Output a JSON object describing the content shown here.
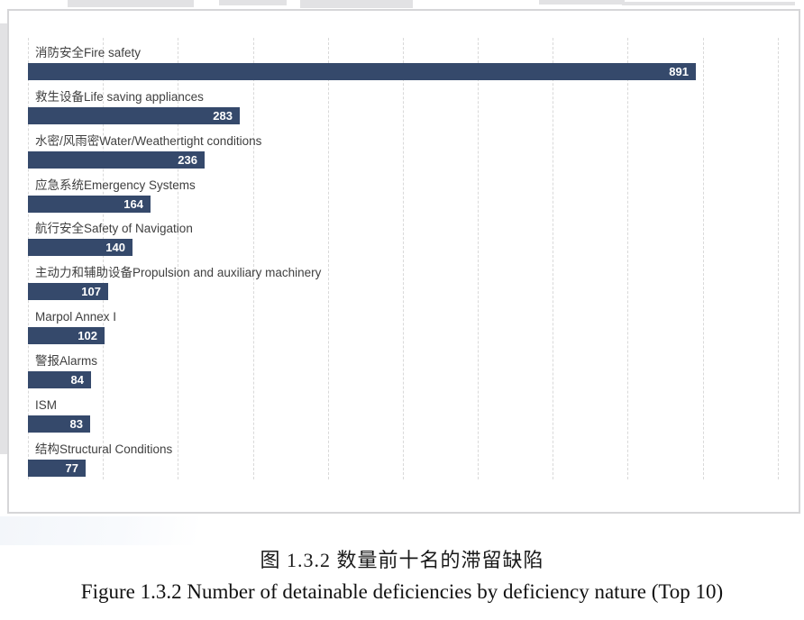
{
  "chart_data": {
    "type": "bar",
    "orientation": "horizontal",
    "title": "",
    "categories": [
      "消防安全Fire safety",
      "救生设备Life saving appliances",
      "水密/风雨密Water/Weathertight conditions",
      "应急系统Emergency Systems",
      "航行安全Safety of Navigation",
      "主动力和辅助设备Propulsion and auxiliary machinery",
      "Marpol Annex I",
      "警报Alarms",
      "ISM",
      "结构Structural Conditions"
    ],
    "values": [
      891,
      283,
      236,
      164,
      140,
      107,
      102,
      84,
      83,
      77
    ],
    "xlim": [
      0,
      1000
    ],
    "gridline_step": 100,
    "grid": true,
    "legend": "none",
    "bar_color": "#35496b",
    "value_label_color": "#ffffff",
    "category_label_color": "#404040",
    "gridline_color": "#d9d9d9",
    "panel_border_color": "#d6d6d8"
  },
  "caption": {
    "chinese": "图 1.3.2 数量前十名的滞留缺陷",
    "english": "Figure 1.3.2 Number of detainable deficiencies by deficiency nature (Top 10)"
  }
}
